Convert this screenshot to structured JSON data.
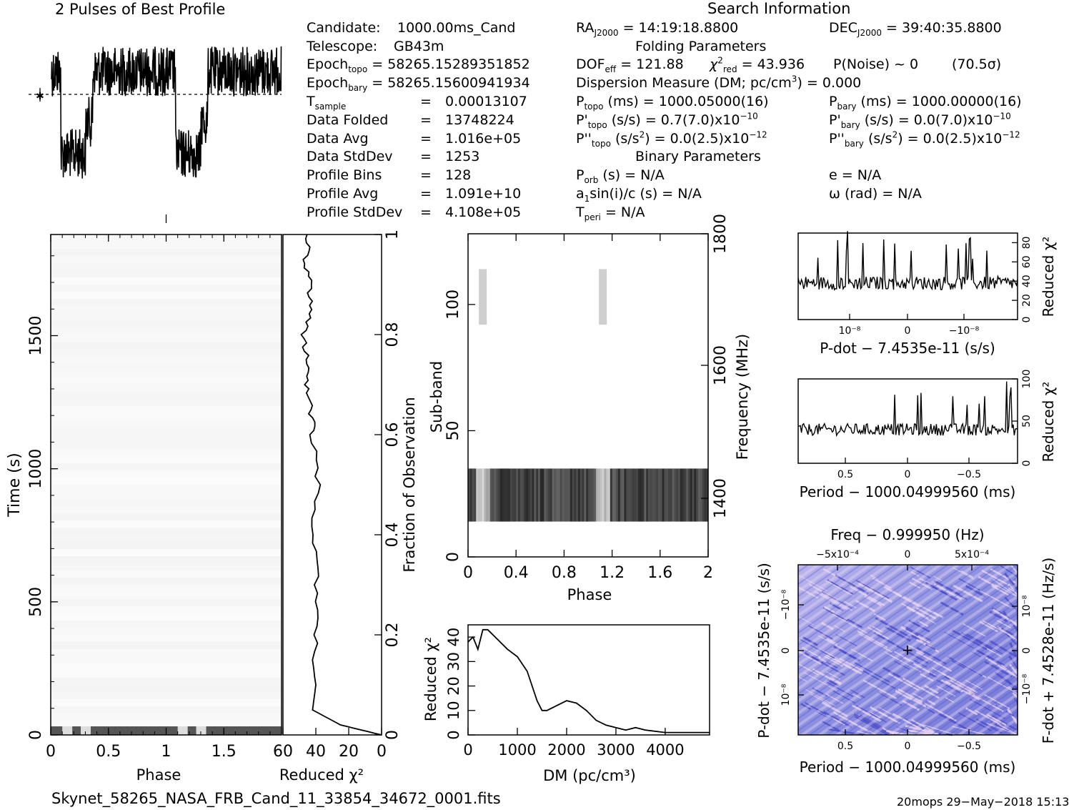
{
  "header": {
    "profile_title": "2 Pulses of Best Profile",
    "search_title": "Search Information",
    "folding_title": "Folding Parameters",
    "binary_title": "Binary Parameters"
  },
  "info": {
    "candidate_label": "Candidate:",
    "candidate_value": "1000.00ms_Cand",
    "telescope_label": "Telescope:",
    "telescope_value": "GB43m",
    "epoch_topo_label": "Epoch",
    "epoch_topo_sub": "topo",
    "epoch_topo_value": "= 58265.15289351852",
    "epoch_bary_label": "Epoch",
    "epoch_bary_sub": "bary",
    "epoch_bary_value": "= 58265.15600941934",
    "tsample_label": "T",
    "tsample_sub": "sample",
    "tsample_value": "0.00013107",
    "data_folded_label": "Data Folded",
    "data_folded_value": "13748224",
    "data_avg_label": "Data Avg",
    "data_avg_value": "1.016e+05",
    "data_std_label": "Data StdDev",
    "data_std_value": "1253",
    "prof_bins_label": "Profile Bins",
    "prof_bins_value": "128",
    "prof_avg_label": "Profile Avg",
    "prof_avg_value": "1.091e+10",
    "prof_std_label": "Profile StdDev",
    "prof_std_value": "4.108e+05",
    "eq": "=",
    "ra_label": "RA",
    "ra_sub": "J2000",
    "ra_value": "= 14:19:18.8800",
    "dec_label": "DEC",
    "dec_sub": "J2000",
    "dec_value": "= 39:40:35.8800",
    "dof_label": "DOF",
    "dof_sub": "eff",
    "dof_value": "= 121.88",
    "chi_label": "χ",
    "chi_sup": "2",
    "chi_sub": "red",
    "chi_value": "= 43.936",
    "pnoise": "P(Noise) ~ 0",
    "sigma": "(70.5σ)",
    "dm_line_a": "Dispersion Measure (DM; pc/cm",
    "dm_line_sup": "3",
    "dm_line_b": ") = 0.000",
    "ptopo_label": "P",
    "ptopo_sub": "topo",
    "ptopo_value": "(ms) =  1000.05000(16)",
    "pbary_label": "P",
    "pbary_sub": "bary",
    "pbary_value": "(ms) =  1000.00000(16)",
    "pdtopo_label": "P'",
    "pdtopo_sub": "topo",
    "pdtopo_value": "(s/s) =  0.7(7.0)x10",
    "pdtopo_exp": "−10",
    "pdbary_label": "P'",
    "pdbary_sub": "bary",
    "pdbary_value": "(s/s) = 0.0(7.0)x10",
    "pdbary_exp": "−10",
    "pddtopo_label": "P''",
    "pddtopo_sub": "topo",
    "pddtopo_value_a": "(s/s",
    "pddtopo_sup2": "2",
    "pddtopo_value_b": ") = 0.0(2.5)x10",
    "pddtopo_exp": "−12",
    "pddbary_label": "P''",
    "pddbary_sub": "bary",
    "pddbary_value_a": "(s/s",
    "pddbary_sup2": "2",
    "pddbary_value_b": ") = 0.0(2.5)x10",
    "pddbary_exp": "−12",
    "porb_label": "P",
    "porb_sub": "orb",
    "porb_value": "(s) = N/A",
    "asini_label": "a",
    "asini_sub": "1",
    "asini_value": "sin(i)/c (s) = N/A",
    "tperi_label": "T",
    "tperi_sub": "peri",
    "tperi_value": "= N/A",
    "ecc": "e = N/A",
    "omega": "ω (rad) = N/A"
  },
  "footer": {
    "filename": "Skynet_58265_NASA_FRB_Cand_11_33854_34672_0001.fits",
    "stamp": "20mops 29−May−2018 15:13"
  },
  "chart_data": [
    {
      "id": "pulse-profile",
      "type": "line",
      "title": "2 Pulses of Best Profile",
      "x": "phase 0–2",
      "note": "two pulses; profile dips low around phase 0.1–0.3 and 1.1–1.3"
    },
    {
      "id": "time-phase",
      "type": "heatmap",
      "xlabel": "Phase",
      "ylabel": "Time (s)",
      "xlim": [
        0,
        2
      ],
      "ylim": [
        0,
        1880
      ],
      "xticks": [
        "0",
        "0.5",
        "1",
        "1.5"
      ],
      "yticks": [
        "0",
        "500",
        "1000",
        "1500"
      ],
      "right_label": "Fraction of Observation",
      "right_ticks": [
        "0",
        "0.2",
        "0.4",
        "0.6",
        "0.8",
        "1"
      ]
    },
    {
      "id": "time-chi",
      "type": "line",
      "xlabel": "Reduced χ²",
      "xlim": [
        60,
        0
      ],
      "xticks": [
        "60",
        "40",
        "20",
        "0"
      ],
      "fraction": [
        0,
        0.02,
        0.05,
        0.1,
        0.2,
        0.3,
        0.4,
        0.5,
        0.6,
        0.65,
        0.7,
        0.75,
        0.8,
        0.85,
        0.9,
        0.95,
        1.0
      ],
      "chi": [
        0,
        25,
        42,
        40,
        41,
        40,
        42,
        39,
        42,
        43,
        45,
        46,
        47,
        43,
        44,
        46,
        44
      ]
    },
    {
      "id": "subband-phase",
      "type": "heatmap",
      "xlabel": "Phase",
      "ylabel": "Sub-band",
      "xlim": [
        0,
        2
      ],
      "ylim": [
        0,
        128
      ],
      "xticks": [
        "0",
        "0.4",
        "0.8",
        "1.2",
        "1.6",
        "2"
      ],
      "yticks": [
        "0",
        "50",
        "100"
      ],
      "right_label": "Frequency (MHz)",
      "right_ticks": [
        "1400",
        "1600",
        "1800"
      ]
    },
    {
      "id": "dm-chi",
      "type": "line",
      "xlabel": "DM (pc/cm³)",
      "ylabel": "Reduced χ²",
      "xlim": [
        0,
        4900
      ],
      "ylim": [
        0,
        45
      ],
      "xticks": [
        "0",
        "1000",
        "2000",
        "3000",
        "4000"
      ],
      "yticks": [
        "0",
        "10",
        "20",
        "30",
        "40"
      ],
      "x": [
        0,
        100,
        200,
        300,
        400,
        600,
        800,
        1000,
        1200,
        1300,
        1400,
        1500,
        1600,
        1800,
        2000,
        2200,
        2400,
        2600,
        2800,
        3000,
        3200,
        3400,
        3600,
        4000,
        4500,
        4900
      ],
      "y": [
        38,
        40,
        35,
        43,
        43,
        39,
        35,
        32,
        26,
        20,
        14,
        10,
        10,
        12,
        14,
        13,
        10,
        6,
        4,
        3,
        2,
        3,
        2,
        1,
        1,
        1
      ]
    },
    {
      "id": "pdot-chi",
      "type": "line",
      "xlabel": "P-dot − 7.4535e-11 (s/s)",
      "ylabel": "Reduced χ²",
      "ylim": [
        0,
        90
      ],
      "xticks": [
        "10⁻⁸",
        "0",
        "−10⁻⁸"
      ],
      "yticks": [
        "0",
        "20",
        "40",
        "60",
        "80"
      ]
    },
    {
      "id": "period-chi",
      "type": "line",
      "xlabel": "Period − 1000.04999560 (ms)",
      "ylabel": "Reduced χ²",
      "ylim": [
        0,
        100
      ],
      "xticks": [
        "0.5",
        "0",
        "−0.5"
      ],
      "yticks": [
        "0",
        "50",
        "100"
      ]
    },
    {
      "id": "ppdot-plane",
      "type": "heatmap",
      "title": "Freq − 0.999950 (Hz)",
      "xlabel": "Period − 1000.04999560 (ms)",
      "ylabel": "P-dot − 7.4535e-11 (s/s)",
      "right_label": "F-dot + 7.4528e-11 (Hz/s)",
      "xticks": [
        "0.5",
        "0",
        "−0.5"
      ],
      "top_ticks": [
        "−5x10⁻⁴",
        "0",
        "5x10⁻⁴"
      ],
      "yticks": [
        "10⁻⁸",
        "0",
        "−10⁻⁸"
      ],
      "right_ticks": [
        "−10⁻⁸",
        "0",
        "10⁻⁸"
      ],
      "colors": {
        "bg": "#8a8fe0",
        "light": "#e8d4ef",
        "dark": "#4a4cc8"
      }
    }
  ]
}
